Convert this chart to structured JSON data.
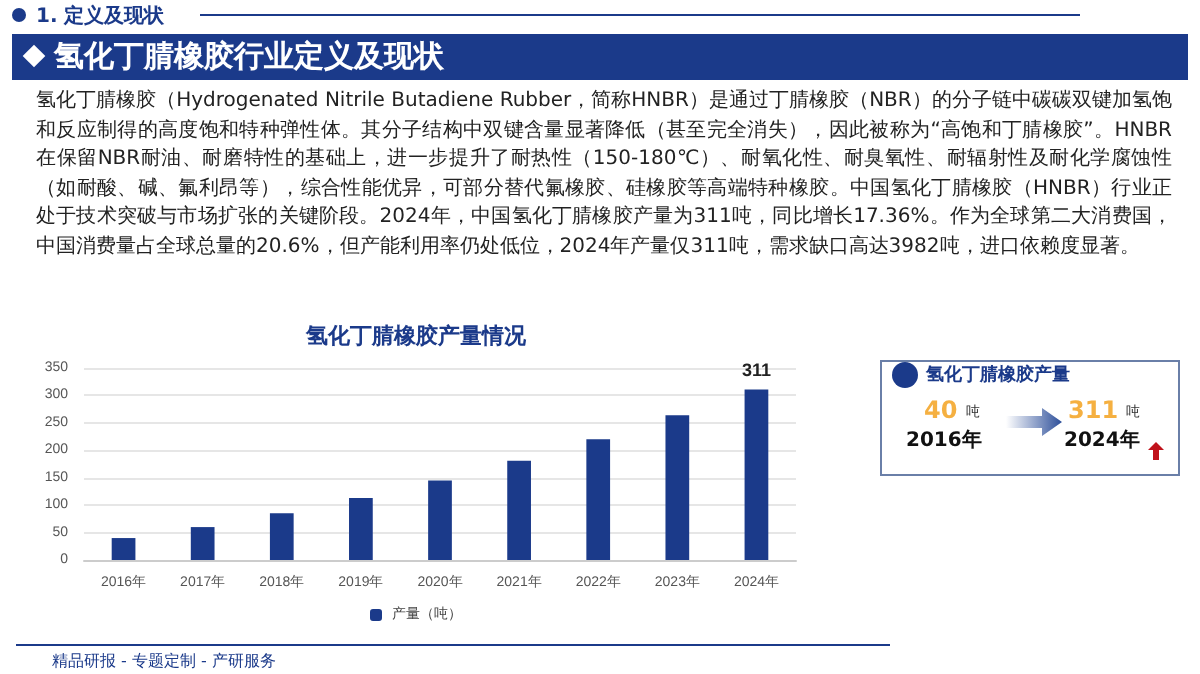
{
  "chart_data": {
    "type": "bar",
    "title": "氢化丁腈橡胶产量情况",
    "categories": [
      "2016年",
      "2017年",
      "2018年",
      "2019年",
      "2020年",
      "2021年",
      "2022年",
      "2023年",
      "2024年"
    ],
    "series": [
      {
        "name": "产量（吨）",
        "color": "#1b3a8a",
        "values": [
          40,
          60,
          85,
          113,
          145,
          181,
          220,
          264,
          311
        ],
        "value_labels": [
          null,
          null,
          null,
          null,
          null,
          null,
          null,
          null,
          "311"
        ]
      }
    ],
    "ylim": [
      0,
      350
    ],
    "yticks": [
      0,
      50,
      100,
      150,
      200,
      250,
      300,
      350
    ],
    "grid": "y",
    "legend": "bottom",
    "annotations": [
      "1. 定义及现状",
      "氢化丁腈橡胶行业定义及现状",
      "氢化丁腈橡胶（Hydrogenated Nitrile Butadiene Rubber，简称HNBR）是通过丁腈橡胶（NBR）的分子链中碳碳双键加氢饱和反应制得的高度饱和特种弹性体。其分子结构中双键含量显著降低（甚至完全消失），因此被称为“高饱和丁腈橡胶”。HNBR在保留NBR耐油、耐磨特性的基础上，进一步提升了耐热性（150-180℃）、耐氧化性、耐臭氧性、耐辐射性及耐化学腐蚀性（如耐酸、碱、氟利昂等），综合性能优异，可部分替代氟橡胶、硅橡胶等高端特种橡胶。中国氢化丁腈橡胶（HNBR）行业正处于技术突破与市场扩张的关键阶段。2024年，中国氢化丁腈橡胶产量为311吨，同比增长17.36%。作为全球第二大消费国，中国消费量占全球总量的20.6%，但产能利用率仍处低位，2024年产量仅311吨，需求缺口高达3982吨，进口依赖度显著。",
      "氢化丁腈橡胶产量",
      "40",
      "吨",
      "2016年",
      "311",
      "吨",
      "2024年",
      "精品研报 - 专题定制 - 产研服务"
    ]
  }
}
